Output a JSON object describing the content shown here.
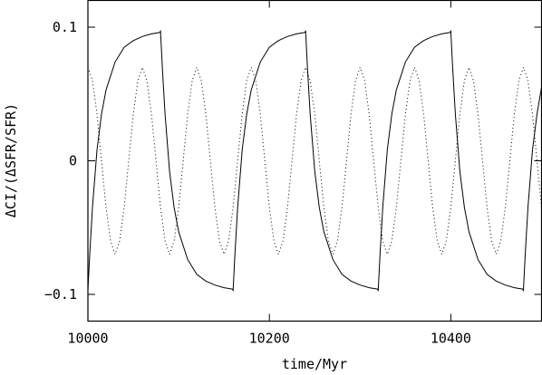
{
  "chart_data": {
    "type": "line",
    "title": "",
    "xlabel": "time/Myr",
    "ylabel": "ΔCI/(ΔSFR/SFR)",
    "xlim": [
      10000,
      10500
    ],
    "ylim": [
      -0.12,
      0.12
    ],
    "grid": false,
    "x_ticks": [
      {
        "value": 10000,
        "label": "10000"
      },
      {
        "value": 10200,
        "label": "10200"
      },
      {
        "value": 10400,
        "label": "10400"
      }
    ],
    "y_ticks": [
      {
        "value": 0.1,
        "label": "0.1"
      },
      {
        "value": 0,
        "label": "0"
      },
      {
        "value": -0.1,
        "label": "−0.1"
      }
    ],
    "series": [
      {
        "style": "solid",
        "color": "#000000",
        "x": [
          10000,
          10002,
          10005,
          10010,
          10015,
          10020,
          10030,
          10040,
          10050,
          10060,
          10070,
          10079,
          10080,
          10082,
          10085,
          10090,
          10095,
          10100,
          10110,
          10120,
          10130,
          10140,
          10150,
          10159,
          10160,
          10162,
          10165,
          10170,
          10175,
          10180,
          10190,
          10200,
          10210,
          10220,
          10230,
          10239,
          10240,
          10242,
          10245,
          10250,
          10255,
          10260,
          10270,
          10280,
          10290,
          10300,
          10310,
          10319,
          10320,
          10322,
          10325,
          10330,
          10335,
          10340,
          10350,
          10360,
          10370,
          10380,
          10390,
          10399,
          10400,
          10402,
          10405,
          10410,
          10415,
          10420,
          10430,
          10440,
          10450,
          10460,
          10470,
          10479,
          10480,
          10482,
          10485,
          10490,
          10495,
          10500
        ],
        "y": [
          -0.097,
          -0.07,
          -0.035,
          0.008,
          0.035,
          0.053,
          0.074,
          0.085,
          0.09,
          0.093,
          0.095,
          0.096,
          0.097,
          0.07,
          0.035,
          -0.008,
          -0.035,
          -0.053,
          -0.074,
          -0.085,
          -0.09,
          -0.093,
          -0.095,
          -0.096,
          -0.097,
          -0.07,
          -0.035,
          0.008,
          0.035,
          0.053,
          0.074,
          0.085,
          0.09,
          0.093,
          0.095,
          0.096,
          0.097,
          0.07,
          0.035,
          -0.008,
          -0.035,
          -0.053,
          -0.074,
          -0.085,
          -0.09,
          -0.093,
          -0.095,
          -0.096,
          -0.097,
          -0.07,
          -0.035,
          0.008,
          0.035,
          0.053,
          0.074,
          0.085,
          0.09,
          0.093,
          0.095,
          0.096,
          0.097,
          0.07,
          0.035,
          -0.008,
          -0.035,
          -0.053,
          -0.074,
          -0.085,
          -0.09,
          -0.093,
          -0.095,
          -0.096,
          -0.097,
          -0.07,
          -0.035,
          0.008,
          0.035,
          0.055
        ]
      },
      {
        "style": "dotted",
        "color": "#000000",
        "x": [
          10000,
          10005,
          10010,
          10015,
          10020,
          10025,
          10030,
          10035,
          10040,
          10045,
          10050,
          10055,
          10060,
          10065,
          10070,
          10075,
          10080,
          10085,
          10090,
          10095,
          10100,
          10105,
          10110,
          10115,
          10120,
          10125,
          10130,
          10135,
          10140,
          10145,
          10150,
          10155,
          10160,
          10165,
          10170,
          10175,
          10180,
          10185,
          10190,
          10195,
          10200,
          10205,
          10210,
          10215,
          10220,
          10225,
          10230,
          10235,
          10240,
          10245,
          10250,
          10255,
          10260,
          10265,
          10270,
          10275,
          10280,
          10285,
          10290,
          10295,
          10300,
          10305,
          10310,
          10315,
          10320,
          10325,
          10330,
          10335,
          10340,
          10345,
          10350,
          10355,
          10360,
          10365,
          10370,
          10375,
          10380,
          10385,
          10390,
          10395,
          10400,
          10405,
          10410,
          10415,
          10420,
          10425,
          10430,
          10435,
          10440,
          10445,
          10450,
          10455,
          10460,
          10465,
          10470,
          10475,
          10480,
          10485,
          10490,
          10495,
          10500
        ],
        "y": [
          0.07,
          0.06,
          0.035,
          0.0,
          -0.035,
          -0.06,
          -0.07,
          -0.06,
          -0.035,
          0.0,
          0.035,
          0.06,
          0.07,
          0.06,
          0.035,
          0.0,
          -0.035,
          -0.06,
          -0.07,
          -0.06,
          -0.035,
          0.0,
          0.035,
          0.06,
          0.07,
          0.06,
          0.035,
          0.0,
          -0.035,
          -0.06,
          -0.07,
          -0.06,
          -0.035,
          0.0,
          0.035,
          0.06,
          0.07,
          0.06,
          0.035,
          0.0,
          -0.035,
          -0.06,
          -0.07,
          -0.06,
          -0.035,
          0.0,
          0.035,
          0.06,
          0.07,
          0.06,
          0.035,
          0.0,
          -0.035,
          -0.06,
          -0.07,
          -0.06,
          -0.035,
          0.0,
          0.035,
          0.06,
          0.07,
          0.06,
          0.035,
          0.0,
          -0.035,
          -0.06,
          -0.07,
          -0.06,
          -0.035,
          0.0,
          0.035,
          0.06,
          0.07,
          0.06,
          0.035,
          0.0,
          -0.035,
          -0.06,
          -0.07,
          -0.06,
          -0.035,
          0.0,
          0.035,
          0.06,
          0.07,
          0.06,
          0.035,
          0.0,
          -0.035,
          -0.06,
          -0.07,
          -0.06,
          -0.035,
          0.0,
          0.035,
          0.06,
          0.07,
          0.06,
          0.035,
          0.0,
          -0.035
        ]
      }
    ]
  }
}
